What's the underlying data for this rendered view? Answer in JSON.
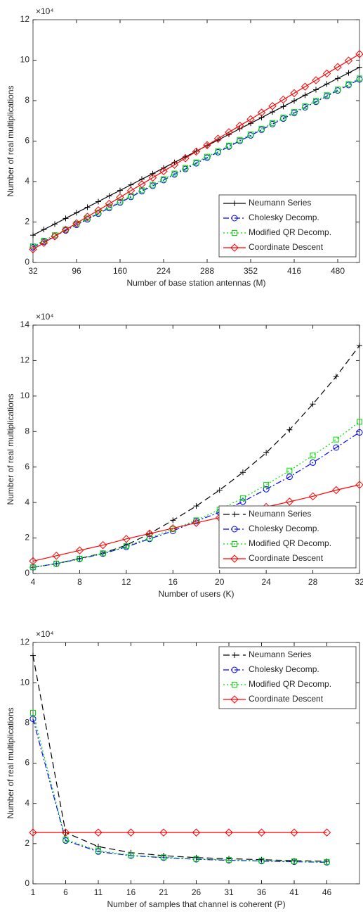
{
  "chart_data": [
    {
      "type": "line",
      "x_label": "Number of base station antennas (M)",
      "y_label": "Number of real multiplications",
      "y_multiplier": "×10⁴",
      "legend": "lower right",
      "x": [
        32,
        48,
        64,
        80,
        96,
        112,
        128,
        144,
        160,
        176,
        192,
        208,
        224,
        240,
        256,
        272,
        288,
        304,
        320,
        336,
        352,
        368,
        384,
        400,
        416,
        432,
        448,
        464,
        480,
        496,
        512
      ],
      "xlim": [
        32,
        512
      ],
      "xticks": [
        32,
        96,
        160,
        224,
        288,
        352,
        416,
        480
      ],
      "ylim": [
        0,
        12
      ],
      "yticks": [
        0,
        2,
        4,
        6,
        8,
        10,
        12
      ],
      "series": [
        {
          "name": "Neumann Series",
          "color": "#000000",
          "dash": "solid",
          "marker": "plus",
          "values": [
            1.35,
            1.63,
            1.9,
            2.18,
            2.46,
            2.73,
            3.01,
            3.29,
            3.56,
            3.84,
            4.12,
            4.39,
            4.67,
            4.95,
            5.22,
            5.5,
            5.78,
            6.05,
            6.33,
            6.61,
            6.88,
            7.16,
            7.44,
            7.71,
            7.99,
            8.27,
            8.54,
            8.82,
            9.1,
            9.37,
            9.65
          ]
        },
        {
          "name": "Cholesky Decomp.",
          "color": "#0000ff",
          "dash": "dashdot",
          "marker": "circle",
          "values": [
            0.75,
            1.03,
            1.3,
            1.58,
            1.86,
            2.13,
            2.41,
            2.69,
            2.96,
            3.24,
            3.52,
            3.79,
            4.07,
            4.35,
            4.62,
            4.9,
            5.18,
            5.45,
            5.73,
            6.01,
            6.28,
            6.56,
            6.84,
            7.11,
            7.39,
            7.67,
            7.94,
            8.22,
            8.5,
            8.77,
            9.05
          ]
        },
        {
          "name": "Modified QR Decomp.",
          "color": "#00dd00",
          "dash": "dotted",
          "marker": "square",
          "values": [
            0.8,
            1.08,
            1.35,
            1.63,
            1.91,
            2.18,
            2.46,
            2.74,
            3.01,
            3.29,
            3.57,
            3.84,
            4.12,
            4.4,
            4.67,
            4.95,
            5.23,
            5.5,
            5.78,
            6.06,
            6.33,
            6.61,
            6.89,
            7.16,
            7.44,
            7.72,
            7.99,
            8.27,
            8.55,
            8.82,
            9.1
          ]
        },
        {
          "name": "Coordinate Descent",
          "color": "#ff0000",
          "dash": "solid",
          "marker": "diamond",
          "values": [
            0.65,
            0.97,
            1.29,
            1.62,
            1.94,
            2.26,
            2.58,
            2.9,
            3.22,
            3.55,
            3.87,
            4.19,
            4.51,
            4.83,
            5.15,
            5.48,
            5.8,
            6.12,
            6.44,
            6.76,
            7.08,
            7.41,
            7.73,
            8.05,
            8.37,
            8.69,
            9.01,
            9.34,
            9.66,
            9.98,
            10.3
          ]
        }
      ]
    },
    {
      "type": "line",
      "x_label": "Number of users (K)",
      "y_label": "Number of real multiplications",
      "y_multiplier": "×10⁴",
      "legend": "lower right",
      "x": [
        4,
        6,
        8,
        10,
        12,
        14,
        16,
        18,
        20,
        22,
        24,
        26,
        28,
        30,
        32
      ],
      "xlim": [
        4,
        32
      ],
      "xticks": [
        4,
        8,
        12,
        16,
        20,
        24,
        28,
        32
      ],
      "ylim": [
        0,
        14
      ],
      "yticks": [
        0,
        2,
        4,
        6,
        8,
        10,
        12,
        14
      ],
      "series": [
        {
          "name": "Neumann Series",
          "color": "#000000",
          "dash": "dashed",
          "marker": "plus",
          "values": [
            0.35,
            0.55,
            0.85,
            1.15,
            1.6,
            2.25,
            3.0,
            3.8,
            4.7,
            5.7,
            6.8,
            8.1,
            9.55,
            11.1,
            12.85
          ]
        },
        {
          "name": "Cholesky Decomp.",
          "color": "#0000ff",
          "dash": "dashdot",
          "marker": "circle",
          "values": [
            0.35,
            0.55,
            0.82,
            1.12,
            1.5,
            1.95,
            2.4,
            2.95,
            3.45,
            4.05,
            4.75,
            5.45,
            6.25,
            7.1,
            7.95
          ]
        },
        {
          "name": "Modified QR Decomp.",
          "color": "#00dd00",
          "dash": "dotted",
          "marker": "square",
          "values": [
            0.35,
            0.56,
            0.84,
            1.14,
            1.55,
            2.0,
            2.5,
            3.0,
            3.6,
            4.25,
            5.0,
            5.8,
            6.65,
            7.55,
            8.55
          ]
        },
        {
          "name": "Coordinate Descent",
          "color": "#ff0000",
          "dash": "solid",
          "marker": "diamond",
          "values": [
            0.7,
            1.0,
            1.3,
            1.6,
            1.95,
            2.25,
            2.55,
            2.85,
            3.15,
            3.45,
            3.75,
            4.05,
            4.35,
            4.7,
            5.0
          ]
        }
      ]
    },
    {
      "type": "line",
      "x_label": "Number of samples that channel is coherent (P)",
      "y_label": "Number of real multiplications",
      "y_multiplier": "×10⁴",
      "legend": "upper right",
      "x": [
        1,
        6,
        11,
        16,
        21,
        26,
        31,
        36,
        41,
        46
      ],
      "xlim": [
        1,
        51
      ],
      "xticks": [
        1,
        6,
        11,
        16,
        21,
        26,
        31,
        36,
        41,
        46
      ],
      "ylim": [
        0,
        12
      ],
      "yticks": [
        0,
        2,
        4,
        6,
        8,
        10,
        12
      ],
      "series": [
        {
          "name": "Neumann Series",
          "color": "#000000",
          "dash": "dashed",
          "marker": "plus",
          "values": [
            11.35,
            2.55,
            1.85,
            1.55,
            1.4,
            1.3,
            1.25,
            1.2,
            1.15,
            1.12
          ]
        },
        {
          "name": "Cholesky Decomp.",
          "color": "#0000ff",
          "dash": "dashdot",
          "marker": "circle",
          "values": [
            8.2,
            2.15,
            1.6,
            1.4,
            1.3,
            1.22,
            1.17,
            1.13,
            1.1,
            1.07
          ]
        },
        {
          "name": "Modified QR Decomp.",
          "color": "#00dd00",
          "dash": "dotted",
          "marker": "square",
          "values": [
            8.5,
            2.2,
            1.65,
            1.42,
            1.32,
            1.24,
            1.19,
            1.15,
            1.12,
            1.09
          ]
        },
        {
          "name": "Coordinate Descent",
          "color": "#ff0000",
          "dash": "solid",
          "marker": "diamond",
          "values": [
            2.55,
            2.55,
            2.55,
            2.55,
            2.55,
            2.55,
            2.55,
            2.55,
            2.55,
            2.55
          ]
        }
      ]
    }
  ]
}
